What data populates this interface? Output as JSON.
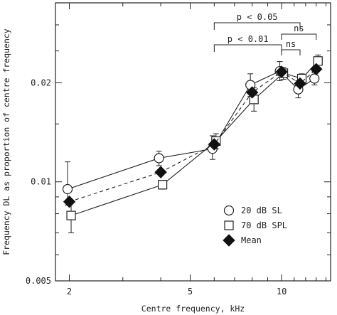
{
  "chart_data": {
    "type": "line",
    "xlabel": "Centre frequency, kHz",
    "ylabel": "Frequency DL as proportion of centre frequency",
    "xscale": "log",
    "yscale": "log",
    "xlim": [
      1.8,
      14.5
    ],
    "ylim": [
      0.005,
      0.035
    ],
    "xticks": [
      {
        "value": 2,
        "label": "2"
      },
      {
        "value": 5,
        "label": "5"
      },
      {
        "value": 10,
        "label": "10"
      }
    ],
    "yticks": [
      {
        "value": 0.005,
        "label": "0.005"
      },
      {
        "value": 0.01,
        "label": "0.01"
      },
      {
        "value": 0.02,
        "label": "0.02"
      }
    ],
    "grid": false,
    "legend_position": "bottom-right",
    "series": [
      {
        "name": "20 dB SL",
        "marker": "open-circle",
        "line": "solid",
        "x": [
          2,
          4,
          6,
          8,
          10,
          11.5,
          13
        ],
        "y": [
          0.0095,
          0.0118,
          0.0126,
          0.0197,
          0.0217,
          0.0191,
          0.0206
        ],
        "yerr_low": [
          0.0085,
          0.0112,
          0.0117,
          0.0182,
          0.0203,
          0.018,
          0.0197
        ],
        "yerr_high": [
          0.0115,
          0.0124,
          0.0138,
          0.0213,
          0.0232,
          0.0203,
          0.0216
        ]
      },
      {
        "name": "70 dB SPL",
        "marker": "open-square",
        "line": "solid",
        "x": [
          2,
          4,
          6,
          8,
          10,
          11.5,
          13
        ],
        "y": [
          0.0079,
          0.0098,
          0.0133,
          0.0178,
          0.0214,
          0.0206,
          0.0233
        ],
        "yerr_low": [
          0.007,
          0.0095,
          0.0126,
          0.0164,
          0.0205,
          0.0198,
          0.0223
        ],
        "yerr_high": [
          0.0088,
          0.0101,
          0.014,
          0.0193,
          0.0223,
          0.0213,
          0.0243
        ]
      },
      {
        "name": "Mean",
        "marker": "filled-diamond",
        "line": "dashed",
        "x": [
          2,
          4,
          6,
          8,
          10,
          11.5,
          13
        ],
        "y": [
          0.0087,
          0.0107,
          0.013,
          0.0187,
          0.0216,
          0.0199,
          0.022
        ]
      }
    ],
    "annotations": [
      {
        "text": "p < 0.05",
        "type": "bracket",
        "from_x": 6,
        "to_x": 11.5
      },
      {
        "text": "p < 0.01",
        "type": "bracket",
        "from_x": 6,
        "to_x": 10
      },
      {
        "text": "ns",
        "type": "bracket",
        "from_x": 10,
        "to_x": 13
      },
      {
        "text": "ns",
        "type": "bracket",
        "from_x": 10,
        "to_x": 11.5
      }
    ]
  }
}
